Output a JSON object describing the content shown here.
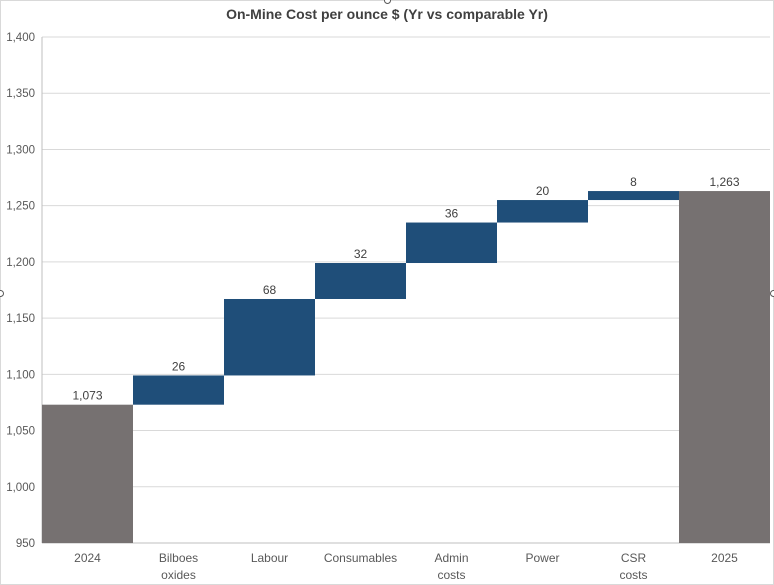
{
  "chart_data": {
    "type": "bar",
    "subtype": "waterfall",
    "title": "On-Mine Cost per ounce $  (Yr vs comparable Yr)",
    "xlabel": "",
    "ylabel": "",
    "ylim": [
      950,
      1400
    ],
    "yticks": [
      "950",
      "1,000",
      "1,050",
      "1,100",
      "1,150",
      "1,200",
      "1,250",
      "1,300",
      "1,350",
      "1,400"
    ],
    "ytick_values": [
      950,
      1000,
      1050,
      1100,
      1150,
      1200,
      1250,
      1300,
      1350,
      1400
    ],
    "grid": true,
    "legend": "none",
    "categories": [
      [
        "2024"
      ],
      [
        "Bilboes",
        "oxides"
      ],
      [
        "Labour"
      ],
      [
        "Consumables"
      ],
      [
        "Admin",
        "costs"
      ],
      [
        "Power"
      ],
      [
        "CSR",
        "costs"
      ],
      [
        "2025"
      ]
    ],
    "bar_kinds": [
      "total",
      "increase",
      "increase",
      "increase",
      "increase",
      "increase",
      "increase",
      "total"
    ],
    "values": [
      1073,
      26,
      68,
      32,
      36,
      20,
      8,
      1263
    ],
    "data_labels": [
      "1,073",
      "26",
      "68",
      "32",
      "36",
      "20",
      "8",
      "1,263"
    ],
    "colors": {
      "total": "#767171",
      "increase": "#1f4e79",
      "label_dark": "#404040",
      "label_light": "#7f7f7f",
      "grid": "#d9d9d9",
      "axis": "#bfbfbf"
    }
  }
}
